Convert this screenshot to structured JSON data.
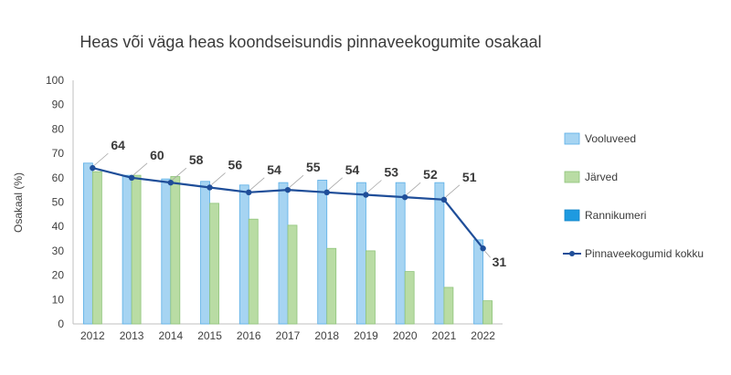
{
  "chart_data": {
    "type": "bar",
    "title": "Heas või väga heas koondseisundis pinnaveekogumite osakaal",
    "xlabel": "",
    "ylabel": "Osakaal (%)",
    "ylim": [
      0,
      100
    ],
    "yticks": [
      0,
      10,
      20,
      30,
      40,
      50,
      60,
      70,
      80,
      90,
      100
    ],
    "categories": [
      "2012",
      "2013",
      "2014",
      "2015",
      "2016",
      "2017",
      "2018",
      "2019",
      "2020",
      "2021",
      "2022"
    ],
    "series": [
      {
        "name": "Vooluveed",
        "kind": "bar",
        "color": "#a6d4f2",
        "border": "#5aaee6",
        "values": [
          66,
          61,
          59.5,
          58.5,
          57,
          58,
          59,
          58,
          58,
          58,
          34.5
        ]
      },
      {
        "name": "Järved",
        "kind": "bar",
        "color": "#b9dca4",
        "border": "#8fc47a",
        "values": [
          62.5,
          61,
          60.5,
          49.5,
          43,
          40.5,
          31,
          30,
          21.5,
          15,
          9.5
        ]
      },
      {
        "name": "Rannikumeri",
        "kind": "bar",
        "color": "#1e9ae0",
        "border": "#1484c8",
        "values": [
          0,
          0,
          0,
          0,
          0,
          0,
          0,
          0,
          0,
          0,
          0
        ]
      },
      {
        "name": "Pinnaveekogumid kokku",
        "kind": "line",
        "color": "#1f4e99",
        "values": [
          64,
          60,
          58,
          56,
          54,
          55,
          54,
          53,
          52,
          51,
          31
        ],
        "labels": [
          "64",
          "60",
          "58",
          "56",
          "54",
          "55",
          "54",
          "53",
          "52",
          "51",
          "31"
        ]
      }
    ],
    "legend": "right",
    "grid": false
  }
}
